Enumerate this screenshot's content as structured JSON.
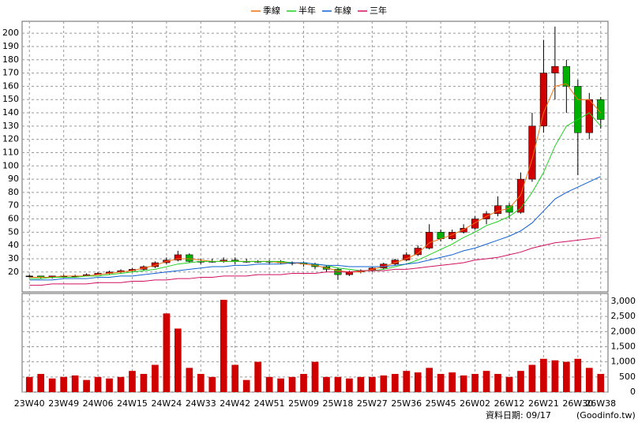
{
  "chart_data": [
    {
      "type": "candlestick",
      "categories": [
        "23W40",
        null,
        null,
        "23W49",
        null,
        null,
        "24W06",
        null,
        null,
        "24W15",
        null,
        null,
        "24W24",
        null,
        null,
        "24W33",
        null,
        null,
        "24W42",
        null,
        null,
        "24W51",
        null,
        null,
        "25W09",
        null,
        null,
        "25W18",
        null,
        null,
        "25W27",
        null,
        null,
        "25W36",
        null,
        null,
        "25W45",
        null,
        null,
        "26W02",
        null,
        null,
        "26W12",
        null,
        null,
        "26W21",
        null,
        null,
        "26W30",
        null,
        "26W38"
      ],
      "candles": [
        [
          17,
          18,
          16,
          17
        ],
        [
          17,
          17,
          15,
          16
        ],
        [
          16,
          17,
          15,
          17
        ],
        [
          17,
          18,
          16,
          17
        ],
        [
          17,
          18,
          16,
          17
        ],
        [
          17,
          19,
          17,
          18
        ],
        [
          18,
          20,
          18,
          19
        ],
        [
          19,
          21,
          18,
          20
        ],
        [
          20,
          22,
          19,
          21
        ],
        [
          21,
          23,
          20,
          22
        ],
        [
          22,
          25,
          21,
          24
        ],
        [
          24,
          28,
          23,
          27
        ],
        [
          27,
          31,
          26,
          29
        ],
        [
          29,
          36,
          28,
          33
        ],
        [
          33,
          34,
          27,
          28
        ],
        [
          28,
          30,
          26,
          28
        ],
        [
          28,
          30,
          27,
          28
        ],
        [
          28,
          31,
          27,
          29
        ],
        [
          29,
          31,
          26,
          28
        ],
        [
          28,
          30,
          27,
          28
        ],
        [
          28,
          29,
          27,
          28
        ],
        [
          28,
          29,
          26,
          28
        ],
        [
          28,
          29,
          26,
          27
        ],
        [
          27,
          28,
          25,
          27
        ],
        [
          27,
          28,
          24,
          26
        ],
        [
          26,
          27,
          22,
          24
        ],
        [
          24,
          25,
          20,
          22
        ],
        [
          22,
          23,
          14,
          18
        ],
        [
          18,
          21,
          17,
          20
        ],
        [
          20,
          22,
          19,
          21
        ],
        [
          21,
          24,
          20,
          23
        ],
        [
          23,
          27,
          22,
          26
        ],
        [
          26,
          30,
          25,
          29
        ],
        [
          29,
          35,
          28,
          33
        ],
        [
          33,
          40,
          32,
          38
        ],
        [
          38,
          56,
          37,
          50
        ],
        [
          50,
          52,
          43,
          45
        ],
        [
          45,
          52,
          44,
          50
        ],
        [
          50,
          56,
          49,
          53
        ],
        [
          53,
          62,
          52,
          60
        ],
        [
          60,
          66,
          56,
          64
        ],
        [
          64,
          77,
          62,
          70
        ],
        [
          70,
          72,
          60,
          65
        ],
        [
          65,
          95,
          64,
          90
        ],
        [
          90,
          140,
          88,
          130
        ],
        [
          130,
          195,
          125,
          170
        ],
        [
          170,
          205,
          150,
          175
        ],
        [
          175,
          180,
          140,
          160
        ],
        [
          160,
          165,
          93,
          125
        ],
        [
          125,
          155,
          120,
          150
        ],
        [
          150,
          152,
          128,
          135
        ]
      ],
      "up_color": "#d00000",
      "down_color": "#00b000",
      "series": [
        {
          "name": "季線",
          "color": "#f07010",
          "values": [
            16,
            16,
            16,
            17,
            17,
            17,
            18,
            19,
            20,
            21,
            23,
            25,
            28,
            30,
            30,
            29,
            28,
            28,
            28,
            28,
            28,
            28,
            27,
            27,
            26,
            25,
            23,
            21,
            20,
            20,
            22,
            24,
            27,
            30,
            34,
            42,
            45,
            48,
            52,
            57,
            62,
            66,
            68,
            78,
            105,
            140,
            160,
            162,
            150,
            150,
            140
          ]
        },
        {
          "name": "半年",
          "color": "#20d020",
          "values": [
            15,
            15,
            16,
            16,
            16,
            17,
            17,
            18,
            19,
            20,
            21,
            22,
            24,
            26,
            27,
            28,
            28,
            28,
            28,
            28,
            28,
            28,
            28,
            27,
            27,
            26,
            25,
            23,
            22,
            21,
            21,
            22,
            24,
            26,
            29,
            33,
            37,
            41,
            46,
            50,
            55,
            58,
            62,
            68,
            80,
            95,
            115,
            130,
            135,
            140,
            130
          ]
        },
        {
          "name": "年線",
          "color": "#1060d0",
          "values": [
            14,
            14,
            14,
            15,
            15,
            15,
            16,
            16,
            17,
            17,
            18,
            19,
            20,
            21,
            22,
            23,
            24,
            24,
            25,
            25,
            26,
            26,
            26,
            27,
            27,
            26,
            25,
            25,
            24,
            24,
            24,
            24,
            25,
            26,
            27,
            29,
            31,
            33,
            36,
            38,
            41,
            44,
            47,
            51,
            57,
            66,
            75,
            80,
            84,
            88,
            92
          ]
        },
        {
          "name": "三年",
          "color": "#d01060",
          "values": [
            10,
            10,
            11,
            11,
            11,
            11,
            12,
            12,
            12,
            13,
            13,
            14,
            14,
            15,
            15,
            16,
            16,
            17,
            17,
            17,
            18,
            18,
            18,
            19,
            19,
            19,
            20,
            20,
            20,
            21,
            21,
            21,
            22,
            22,
            23,
            24,
            25,
            26,
            27,
            29,
            30,
            31,
            33,
            35,
            38,
            40,
            42,
            43,
            44,
            45,
            46
          ]
        }
      ],
      "ylim": [
        5,
        209
      ],
      "yticks": [
        20,
        30,
        40,
        50,
        60,
        70,
        80,
        90,
        100,
        110,
        120,
        130,
        140,
        150,
        160,
        170,
        180,
        190,
        200
      ],
      "grid": true
    },
    {
      "type": "bar",
      "values": [
        500,
        600,
        450,
        500,
        550,
        400,
        500,
        450,
        500,
        700,
        600,
        900,
        2600,
        2100,
        800,
        600,
        500,
        3050,
        900,
        400,
        1000,
        500,
        450,
        500,
        600,
        1000,
        500,
        500,
        450,
        500,
        500,
        550,
        600,
        700,
        650,
        800,
        600,
        650,
        550,
        600,
        700,
        600,
        500,
        700,
        900,
        1100,
        1050,
        1000,
        1100,
        800,
        600
      ],
      "color": "#d00000",
      "ylim": [
        0,
        3260
      ],
      "yticks": [
        0,
        500,
        {
          "value": 1000,
          "label": "1,000"
        },
        {
          "value": 1500,
          "label": "1,500"
        },
        {
          "value": 2000,
          "label": "2,000"
        },
        {
          "value": 2500,
          "label": "2,500"
        },
        {
          "value": 3000,
          "label": "3,000"
        }
      ],
      "grid": true
    }
  ],
  "footer": {
    "date_label": "資料日期: 09/17",
    "source": "(Goodinfo.tw)"
  }
}
